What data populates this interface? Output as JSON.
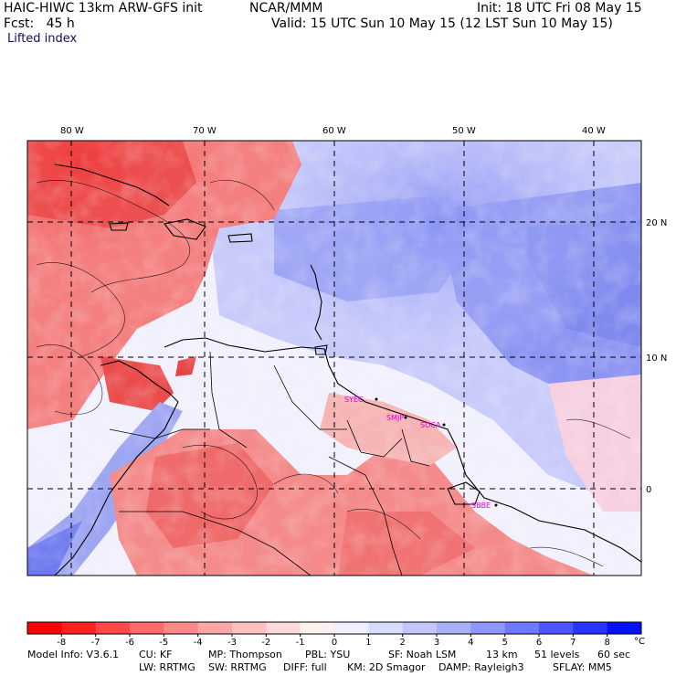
{
  "header": {
    "model": "HAIC-HIWC 13km ARW-GFS init",
    "org": "NCAR/MMM",
    "init": "Init: 18 UTC Fri 08 May 15",
    "fcst": "Fcst:   45 h",
    "valid": "Valid: 15 UTC Sun 10 May 15 (12 LST Sun 10 May 15)",
    "field": "Lifted index"
  },
  "map": {
    "lon_labels": [
      "80 W",
      "70 W",
      "60 W",
      "50 W",
      "40 W"
    ],
    "lat_labels": [
      "20 N",
      "10 N",
      "0"
    ],
    "stations": [
      "SYEC",
      "SMJP",
      "SOCA",
      "SBBE"
    ],
    "colors": {
      "negative": "#ff4040",
      "positive": "#4a5cf0",
      "neutral": "#ffffff",
      "station": "#e000e0"
    }
  },
  "colorbar": {
    "ticks": [
      "-8",
      "-7",
      "-6",
      "-5",
      "-4",
      "-3",
      "-2",
      "-1",
      "0",
      "1",
      "2",
      "3",
      "4",
      "5",
      "6",
      "7",
      "8"
    ],
    "unit": "°C",
    "colors": [
      "#ff0000",
      "#ff2020",
      "#ff4848",
      "#ff6a6a",
      "#ff8888",
      "#ffa6a6",
      "#ffc0c0",
      "#ffdada",
      "#fff0f0",
      "#eef0ff",
      "#dadcff",
      "#c2c6ff",
      "#aab0ff",
      "#8e96ff",
      "#7078ff",
      "#4c56ff",
      "#2a34ff",
      "#0010ff"
    ]
  },
  "footer": {
    "line1": [
      "Model Info: V3.6.1",
      "CU: KF",
      "MP: Thompson",
      "PBL: YSU",
      "SF: Noah LSM",
      "13 km",
      "51 levels",
      "60 sec"
    ],
    "line2": [
      "LW: RRTMG",
      "SW: RRTMG",
      "DIFF: full",
      "KM: 2D Smagor",
      "DAMP: Rayleigh3",
      "SFLAY: MM5"
    ]
  }
}
